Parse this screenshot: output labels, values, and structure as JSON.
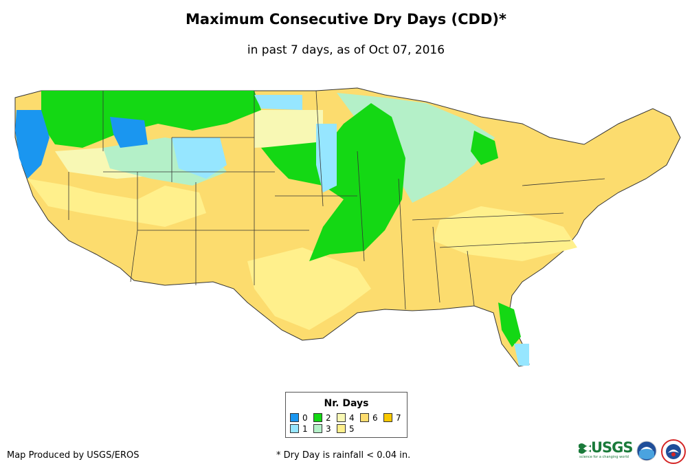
{
  "title": "Maximum Consecutive Dry Days (CDD)*",
  "subtitle": "in past 7 days, as of Oct 07, 2016",
  "legend": {
    "title": "Nr. Days",
    "items": [
      {
        "label": "0",
        "color": "#1a96f0"
      },
      {
        "label": "1",
        "color": "#96e6ff"
      },
      {
        "label": "2",
        "color": "#14d814"
      },
      {
        "label": "3",
        "color": "#b4f0c8"
      },
      {
        "label": "4",
        "color": "#f8f8b4"
      },
      {
        "label": "5",
        "color": "#fff08c"
      },
      {
        "label": "6",
        "color": "#fcdc6e"
      },
      {
        "label": "7",
        "color": "#f8c800"
      }
    ]
  },
  "credit": "Map Produced by USGS/EROS",
  "footnote": "* Dry Day is rainfall < 0.04 in.",
  "logos": {
    "usgs": "USGS",
    "usgs_tagline": "science for a changing world",
    "noaa": "noaa-logo",
    "nws": "nws-logo"
  },
  "map_regions": [
    {
      "region": "Pacific Northwest coast",
      "days": 0
    },
    {
      "region": "Northern Plains / Upper Midwest",
      "days": 2
    },
    {
      "region": "Wisconsin / Michigan",
      "days": 3
    },
    {
      "region": "Southwest",
      "days": 6
    },
    {
      "region": "Southeast",
      "days": 6
    },
    {
      "region": "Northeast",
      "days": 6
    },
    {
      "region": "Central Florida",
      "days": 2
    }
  ]
}
